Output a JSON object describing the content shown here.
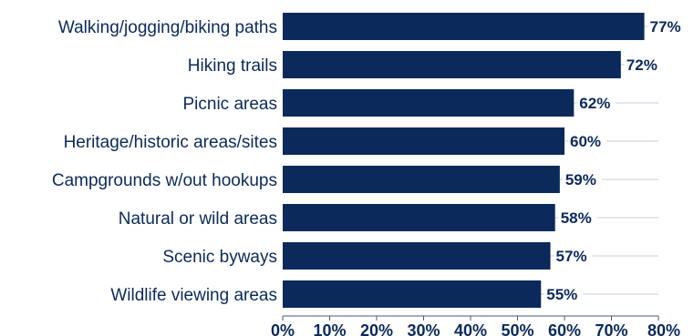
{
  "chart_data": {
    "type": "bar",
    "orientation": "horizontal",
    "categories": [
      "Walking/jogging/biking paths",
      "Hiking trails",
      "Picnic areas",
      "Heritage/historic areas/sites",
      "Campgrounds w/out hookups",
      "Natural or wild areas",
      "Scenic byways",
      "Wildlife viewing areas"
    ],
    "values": [
      77,
      72,
      62,
      60,
      59,
      58,
      57,
      55
    ],
    "value_labels": [
      "77%",
      "72%",
      "62%",
      "60%",
      "59%",
      "58%",
      "57%",
      "55%"
    ],
    "xticks": [
      0,
      10,
      20,
      30,
      40,
      50,
      60,
      70,
      80
    ],
    "xtick_labels": [
      "0%",
      "10%",
      "20%",
      "30%",
      "40%",
      "50%",
      "60%",
      "70%",
      "80%"
    ],
    "xlim": [
      0,
      80
    ],
    "title": "",
    "xlabel": "",
    "ylabel": "",
    "grid": "horizontal guide lines",
    "legend": "none",
    "colors": {
      "bar": "#0b2a5b",
      "text": "#0b2a5b",
      "gridline": "#c7cedc",
      "axis": "#4a5a7a"
    }
  }
}
